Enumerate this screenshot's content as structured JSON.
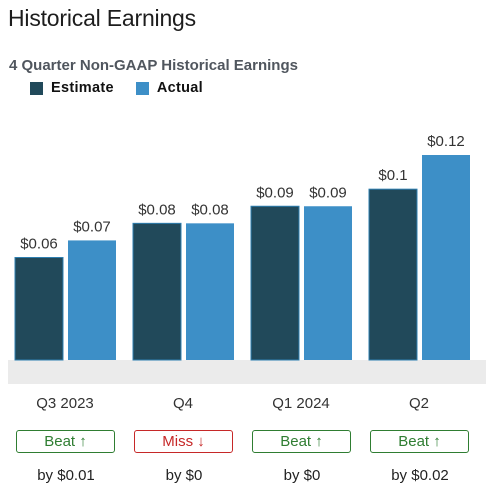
{
  "header": {
    "title": "Historical Earnings"
  },
  "chart_data": {
    "type": "bar",
    "title": "4 Quarter Non-GAAP Historical Earnings",
    "categories": [
      "Q3 2023",
      "Q4",
      "Q1 2024",
      "Q2"
    ],
    "series": [
      {
        "name": "Estimate",
        "values": [
          0.06,
          0.08,
          0.09,
          0.1
        ],
        "labels": [
          "$0.06",
          "$0.08",
          "$0.09",
          "$0.1"
        ],
        "color": "#21495a"
      },
      {
        "name": "Actual",
        "values": [
          0.07,
          0.08,
          0.09,
          0.12
        ],
        "labels": [
          "$0.07",
          "$0.08",
          "$0.09",
          "$0.12"
        ],
        "color": "#3d8fc7"
      }
    ],
    "ylim": [
      0,
      0.12
    ],
    "grid": false,
    "legend": "top-left",
    "baseline_color": "#ebebeb"
  },
  "results": [
    {
      "status": "Beat",
      "arrow": "↑",
      "type": "beat",
      "diff": "by $0.01"
    },
    {
      "status": "Miss",
      "arrow": "↓",
      "type": "miss",
      "diff": "by $0"
    },
    {
      "status": "Beat",
      "arrow": "↑",
      "type": "beat",
      "diff": "by $0"
    },
    {
      "status": "Beat",
      "arrow": "↑",
      "type": "beat",
      "diff": "by $0.02"
    }
  ]
}
